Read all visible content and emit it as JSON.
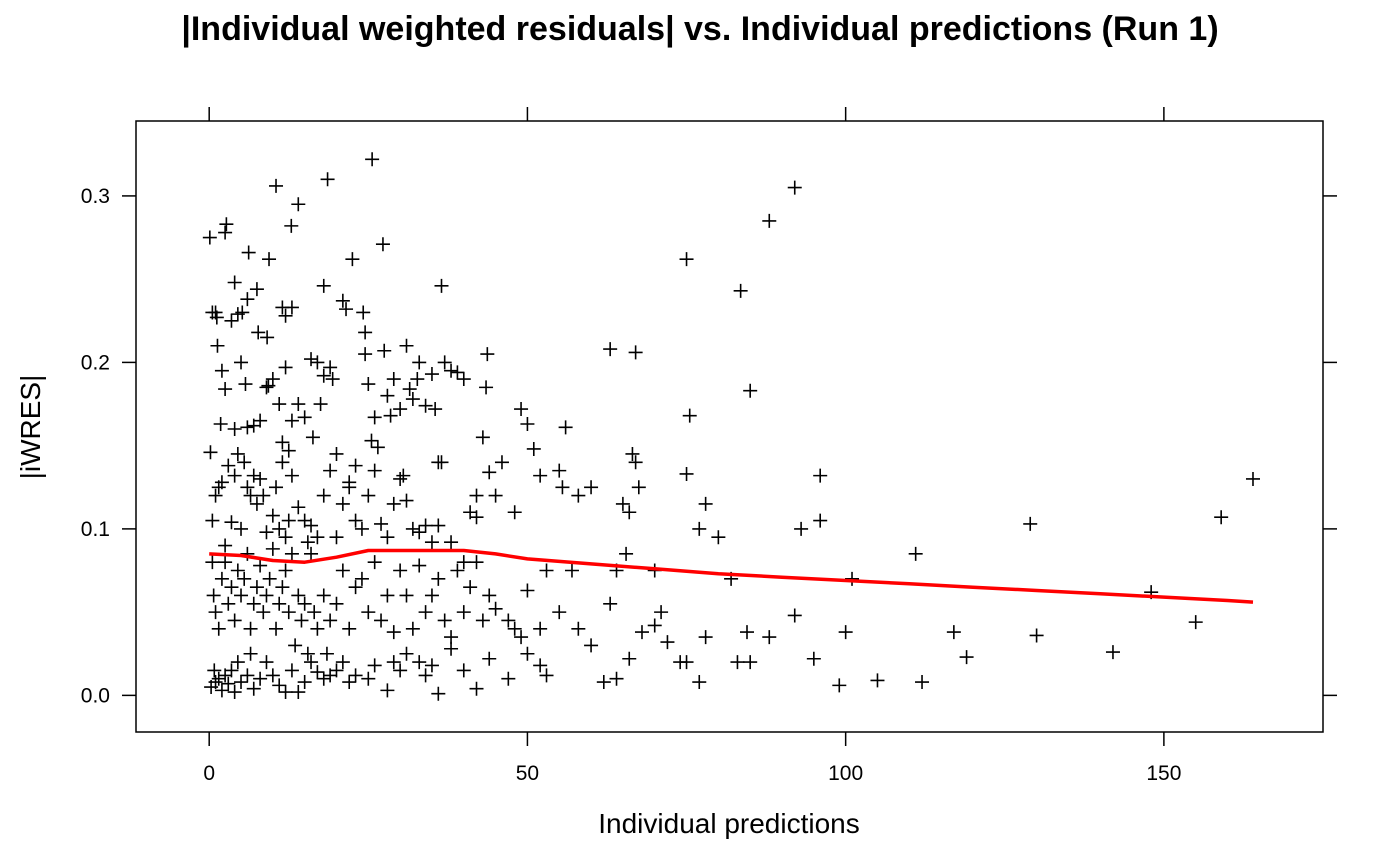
{
  "chart_data": {
    "type": "scatter",
    "title": "|Individual weighted residuals| vs. Individual predictions (Run 1)",
    "xlabel": "Individual predictions",
    "ylabel": "|iWRES|",
    "xlim": [
      -11.5,
      175
    ],
    "ylim": [
      -0.022,
      0.345
    ],
    "xticks": [
      0,
      50,
      100,
      150
    ],
    "xtick_labels": [
      "0",
      "50",
      "100",
      "150"
    ],
    "yticks": [
      0.0,
      0.1,
      0.2,
      0.3
    ],
    "ytick_labels": [
      "0.0",
      "0.1",
      "0.2",
      "0.3"
    ],
    "marker": "plus",
    "grid": false,
    "points": [
      [
        0.1,
        0.275
      ],
      [
        0.5,
        0.23
      ],
      [
        1,
        0.23
      ],
      [
        1.2,
        0.227
      ],
      [
        2.5,
        0.278
      ],
      [
        2.7,
        0.283
      ],
      [
        3.5,
        0.225
      ],
      [
        4,
        0.248
      ],
      [
        4.5,
        0.229
      ],
      [
        5.2,
        0.23
      ],
      [
        5.7,
        0.187
      ],
      [
        6,
        0.238
      ],
      [
        6.2,
        0.266
      ],
      [
        7.5,
        0.244
      ],
      [
        7.7,
        0.218
      ],
      [
        9.1,
        0.215
      ],
      [
        9.4,
        0.262
      ],
      [
        10.5,
        0.306
      ],
      [
        11.5,
        0.233
      ],
      [
        12,
        0.228
      ],
      [
        12.9,
        0.282
      ],
      [
        13,
        0.233
      ],
      [
        14,
        0.295
      ],
      [
        18,
        0.246
      ],
      [
        18.6,
        0.31
      ],
      [
        21,
        0.237
      ],
      [
        21.5,
        0.232
      ],
      [
        22.5,
        0.262
      ],
      [
        24.2,
        0.23
      ],
      [
        24.5,
        0.218
      ],
      [
        25.6,
        0.322
      ],
      [
        27.3,
        0.271
      ],
      [
        36.5,
        0.246
      ],
      [
        1.3,
        0.21
      ],
      [
        1.8,
        0.163
      ],
      [
        2,
        0.195
      ],
      [
        2.5,
        0.184
      ],
      [
        4,
        0.16
      ],
      [
        5,
        0.2
      ],
      [
        6,
        0.161
      ],
      [
        7,
        0.162
      ],
      [
        8,
        0.165
      ],
      [
        9,
        0.185
      ],
      [
        9.3,
        0.186
      ],
      [
        10,
        0.19
      ],
      [
        11,
        0.175
      ],
      [
        11.5,
        0.152
      ],
      [
        12,
        0.197
      ],
      [
        12.5,
        0.147
      ],
      [
        13,
        0.165
      ],
      [
        14,
        0.175
      ],
      [
        15,
        0.167
      ],
      [
        16,
        0.202
      ],
      [
        16.3,
        0.155
      ],
      [
        17,
        0.2
      ],
      [
        17.5,
        0.175
      ],
      [
        18,
        0.192
      ],
      [
        19,
        0.197
      ],
      [
        19.4,
        0.19
      ],
      [
        20,
        0.145
      ],
      [
        22,
        0.128
      ],
      [
        23,
        0.138
      ],
      [
        24.5,
        0.205
      ],
      [
        25,
        0.187
      ],
      [
        25.5,
        0.153
      ],
      [
        26,
        0.167
      ],
      [
        26.5,
        0.149
      ],
      [
        27.5,
        0.207
      ],
      [
        28,
        0.18
      ],
      [
        28.5,
        0.168
      ],
      [
        29,
        0.19
      ],
      [
        30,
        0.172
      ],
      [
        30.5,
        0.132
      ],
      [
        31,
        0.21
      ],
      [
        31.5,
        0.184
      ],
      [
        32,
        0.178
      ],
      [
        32.7,
        0.19
      ],
      [
        33,
        0.2
      ],
      [
        34,
        0.174
      ],
      [
        35,
        0.193
      ],
      [
        35.5,
        0.172
      ],
      [
        36,
        0.14
      ],
      [
        36.5,
        0.14
      ],
      [
        37,
        0.2
      ],
      [
        38,
        0.195
      ],
      [
        39,
        0.194
      ],
      [
        40,
        0.19
      ],
      [
        41,
        0.11
      ],
      [
        42,
        0.12
      ],
      [
        43,
        0.155
      ],
      [
        43.7,
        0.205
      ],
      [
        44,
        0.134
      ],
      [
        43.5,
        0.185
      ],
      [
        0.2,
        0.146
      ],
      [
        0.5,
        0.105
      ],
      [
        1,
        0.12
      ],
      [
        1.5,
        0.125
      ],
      [
        2,
        0.128
      ],
      [
        2.5,
        0.09
      ],
      [
        3,
        0.138
      ],
      [
        3.5,
        0.104
      ],
      [
        4,
        0.132
      ],
      [
        4.5,
        0.145
      ],
      [
        5,
        0.1
      ],
      [
        5.5,
        0.14
      ],
      [
        6,
        0.125
      ],
      [
        6.5,
        0.12
      ],
      [
        7,
        0.132
      ],
      [
        7.5,
        0.115
      ],
      [
        8,
        0.13
      ],
      [
        8.5,
        0.12
      ],
      [
        9,
        0.098
      ],
      [
        10,
        0.108
      ],
      [
        10.5,
        0.125
      ],
      [
        11,
        0.1
      ],
      [
        11.5,
        0.14
      ],
      [
        12,
        0.095
      ],
      [
        12.5,
        0.105
      ],
      [
        13,
        0.132
      ],
      [
        14,
        0.113
      ],
      [
        15,
        0.105
      ],
      [
        15.5,
        0.092
      ],
      [
        16,
        0.102
      ],
      [
        17,
        0.095
      ],
      [
        18,
        0.12
      ],
      [
        19,
        0.135
      ],
      [
        20,
        0.095
      ],
      [
        21,
        0.115
      ],
      [
        22,
        0.125
      ],
      [
        23,
        0.105
      ],
      [
        24,
        0.1
      ],
      [
        25,
        0.12
      ],
      [
        26,
        0.135
      ],
      [
        27,
        0.103
      ],
      [
        28,
        0.095
      ],
      [
        29,
        0.115
      ],
      [
        30,
        0.13
      ],
      [
        31,
        0.117
      ],
      [
        32,
        0.1
      ],
      [
        33,
        0.098
      ],
      [
        34,
        0.102
      ],
      [
        35,
        0.092
      ],
      [
        36,
        0.102
      ],
      [
        38,
        0.092
      ],
      [
        40,
        0.08
      ],
      [
        42,
        0.107
      ],
      [
        45,
        0.12
      ],
      [
        46,
        0.14
      ],
      [
        48,
        0.11
      ],
      [
        49,
        0.172
      ],
      [
        50,
        0.163
      ],
      [
        51,
        0.148
      ],
      [
        52,
        0.132
      ],
      [
        55,
        0.135
      ],
      [
        55.5,
        0.125
      ],
      [
        56,
        0.161
      ],
      [
        58,
        0.12
      ],
      [
        60,
        0.125
      ],
      [
        63,
        0.208
      ],
      [
        65,
        0.115
      ],
      [
        65.5,
        0.085
      ],
      [
        66,
        0.11
      ],
      [
        67,
        0.206
      ],
      [
        66.5,
        0.145
      ],
      [
        67,
        0.14
      ],
      [
        67.5,
        0.125
      ],
      [
        70,
        0.075
      ],
      [
        75,
        0.262
      ],
      [
        75,
        0.133
      ],
      [
        75.5,
        0.168
      ],
      [
        77,
        0.1
      ],
      [
        78,
        0.115
      ],
      [
        80,
        0.095
      ],
      [
        82,
        0.07
      ],
      [
        83.5,
        0.243
      ],
      [
        84.5,
        0.038
      ],
      [
        85,
        0.183
      ],
      [
        88,
        0.285
      ],
      [
        92,
        0.305
      ],
      [
        93,
        0.1
      ],
      [
        96,
        0.132
      ],
      [
        96,
        0.105
      ],
      [
        101,
        0.07
      ],
      [
        111,
        0.085
      ],
      [
        129,
        0.103
      ],
      [
        159,
        0.107
      ],
      [
        164,
        0.13
      ],
      [
        0.5,
        0.08
      ],
      [
        0.7,
        0.06
      ],
      [
        1,
        0.05
      ],
      [
        1.5,
        0.04
      ],
      [
        2,
        0.07
      ],
      [
        2.5,
        0.08
      ],
      [
        3,
        0.055
      ],
      [
        3.5,
        0.065
      ],
      [
        4,
        0.045
      ],
      [
        4.5,
        0.075
      ],
      [
        5,
        0.06
      ],
      [
        5.5,
        0.07
      ],
      [
        6,
        0.085
      ],
      [
        6.5,
        0.04
      ],
      [
        7,
        0.055
      ],
      [
        7.5,
        0.065
      ],
      [
        8,
        0.078
      ],
      [
        8.5,
        0.05
      ],
      [
        9,
        0.06
      ],
      [
        9.5,
        0.07
      ],
      [
        10,
        0.088
      ],
      [
        10.5,
        0.04
      ],
      [
        11,
        0.055
      ],
      [
        11.5,
        0.065
      ],
      [
        12,
        0.075
      ],
      [
        12.5,
        0.05
      ],
      [
        13,
        0.085
      ],
      [
        13.5,
        0.03
      ],
      [
        14,
        0.06
      ],
      [
        14.5,
        0.045
      ],
      [
        15,
        0.055
      ],
      [
        15.5,
        0.025
      ],
      [
        16,
        0.085
      ],
      [
        16.5,
        0.05
      ],
      [
        17,
        0.04
      ],
      [
        18,
        0.06
      ],
      [
        18.5,
        0.025
      ],
      [
        19,
        0.045
      ],
      [
        20,
        0.055
      ],
      [
        21,
        0.075
      ],
      [
        22,
        0.04
      ],
      [
        23,
        0.065
      ],
      [
        24,
        0.07
      ],
      [
        25,
        0.05
      ],
      [
        26,
        0.08
      ],
      [
        27,
        0.045
      ],
      [
        28,
        0.06
      ],
      [
        29,
        0.038
      ],
      [
        30,
        0.075
      ],
      [
        31,
        0.06
      ],
      [
        32,
        0.04
      ],
      [
        33,
        0.078
      ],
      [
        34,
        0.05
      ],
      [
        35,
        0.06
      ],
      [
        36,
        0.07
      ],
      [
        37,
        0.045
      ],
      [
        38,
        0.035
      ],
      [
        39,
        0.075
      ],
      [
        40,
        0.05
      ],
      [
        41,
        0.065
      ],
      [
        42,
        0.08
      ],
      [
        43,
        0.045
      ],
      [
        44,
        0.06
      ],
      [
        45,
        0.052
      ],
      [
        47,
        0.045
      ],
      [
        48,
        0.04
      ],
      [
        49,
        0.035
      ],
      [
        50,
        0.063
      ],
      [
        52,
        0.04
      ],
      [
        53,
        0.075
      ],
      [
        55,
        0.05
      ],
      [
        57,
        0.075
      ],
      [
        58,
        0.04
      ],
      [
        60,
        0.03
      ],
      [
        63,
        0.055
      ],
      [
        64,
        0.075
      ],
      [
        66,
        0.022
      ],
      [
        68,
        0.038
      ],
      [
        70,
        0.042
      ],
      [
        71,
        0.05
      ],
      [
        72,
        0.032
      ],
      [
        74,
        0.02
      ],
      [
        75,
        0.02
      ],
      [
        78,
        0.035
      ],
      [
        83,
        0.02
      ],
      [
        85,
        0.02
      ],
      [
        88,
        0.035
      ],
      [
        92,
        0.048
      ],
      [
        95,
        0.022
      ],
      [
        100,
        0.038
      ],
      [
        117,
        0.038
      ],
      [
        119,
        0.023
      ],
      [
        130,
        0.036
      ],
      [
        142,
        0.026
      ],
      [
        148,
        0.062
      ],
      [
        155,
        0.044
      ],
      [
        0.3,
        0.005
      ],
      [
        0.8,
        0.015
      ],
      [
        1,
        0.008
      ],
      [
        1.5,
        0.01
      ],
      [
        2,
        0.003
      ],
      [
        2.5,
        0.012
      ],
      [
        3,
        0.007
      ],
      [
        3.5,
        0.015
      ],
      [
        4,
        0.002
      ],
      [
        4.5,
        0.02
      ],
      [
        5,
        0.008
      ],
      [
        6,
        0.012
      ],
      [
        6.5,
        0.025
      ],
      [
        7,
        0.004
      ],
      [
        8,
        0.01
      ],
      [
        9,
        0.02
      ],
      [
        10,
        0.012
      ],
      [
        11,
        0.006
      ],
      [
        12,
        0.002
      ],
      [
        13,
        0.015
      ],
      [
        14,
        0.002
      ],
      [
        15,
        0.008
      ],
      [
        16,
        0.02
      ],
      [
        17,
        0.014
      ],
      [
        18,
        0.01
      ],
      [
        19,
        0.012
      ],
      [
        20,
        0.015
      ],
      [
        21,
        0.02
      ],
      [
        22,
        0.008
      ],
      [
        23,
        0.012
      ],
      [
        25,
        0.01
      ],
      [
        26,
        0.018
      ],
      [
        28,
        0.003
      ],
      [
        29,
        0.02
      ],
      [
        30,
        0.015
      ],
      [
        31,
        0.025
      ],
      [
        33,
        0.02
      ],
      [
        34,
        0.012
      ],
      [
        35,
        0.018
      ],
      [
        36,
        0.001
      ],
      [
        38,
        0.028
      ],
      [
        40,
        0.015
      ],
      [
        42,
        0.004
      ],
      [
        44,
        0.022
      ],
      [
        47,
        0.01
      ],
      [
        50,
        0.025
      ],
      [
        52,
        0.018
      ],
      [
        53,
        0.012
      ],
      [
        62,
        0.008
      ],
      [
        64,
        0.01
      ],
      [
        77,
        0.008
      ],
      [
        99,
        0.006
      ],
      [
        105,
        0.009
      ],
      [
        112,
        0.008
      ]
    ],
    "smooth_line": {
      "color": "#ff0000",
      "x": [
        0,
        5,
        10,
        15,
        20,
        25,
        30,
        35,
        40,
        45,
        50,
        60,
        70,
        80,
        90,
        100,
        110,
        120,
        130,
        140,
        150,
        160,
        164
      ],
      "y": [
        0.085,
        0.084,
        0.081,
        0.08,
        0.083,
        0.087,
        0.087,
        0.087,
        0.087,
        0.085,
        0.082,
        0.079,
        0.076,
        0.073,
        0.071,
        0.069,
        0.067,
        0.065,
        0.063,
        0.061,
        0.059,
        0.057,
        0.056
      ]
    }
  }
}
